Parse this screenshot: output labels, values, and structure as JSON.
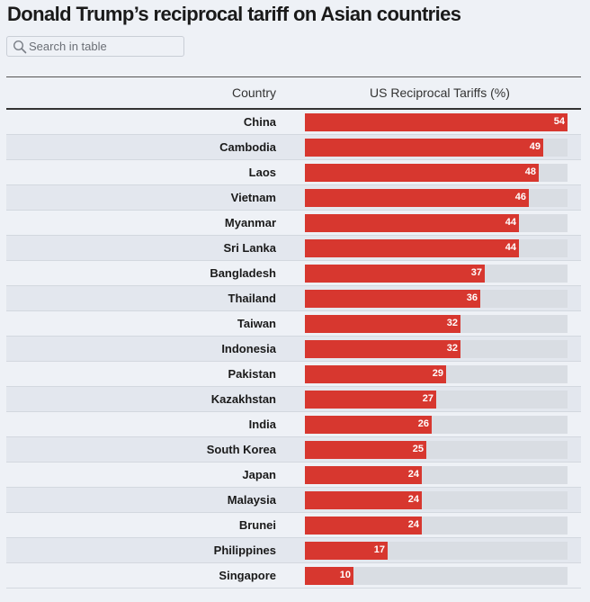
{
  "title": "Donald Trump’s reciprocal tariff on Asian countries",
  "search": {
    "placeholder": "Search in table",
    "value": ""
  },
  "colors": {
    "bar": "#d7372f",
    "bar_bg": "#d9dde3",
    "background": "#eef1f6"
  },
  "chart_data": {
    "type": "bar",
    "orientation": "horizontal",
    "title": "Donald Trump’s reciprocal tariff on Asian countries",
    "xlabel": "US Reciprocal Tariffs (%)",
    "ylabel": "Country",
    "xlim": [
      0,
      54
    ],
    "columns": [
      "Country",
      "US Reciprocal Tariffs (%)"
    ],
    "categories": [
      "China",
      "Cambodia",
      "Laos",
      "Vietnam",
      "Myanmar",
      "Sri Lanka",
      "Bangladesh",
      "Thailand",
      "Taiwan",
      "Indonesia",
      "Pakistan",
      "Kazakhstan",
      "India",
      "South Korea",
      "Japan",
      "Malaysia",
      "Brunei",
      "Philippines",
      "Singapore"
    ],
    "values": [
      54,
      49,
      48,
      46,
      44,
      44,
      37,
      36,
      32,
      32,
      29,
      27,
      26,
      25,
      24,
      24,
      24,
      17,
      10
    ]
  }
}
